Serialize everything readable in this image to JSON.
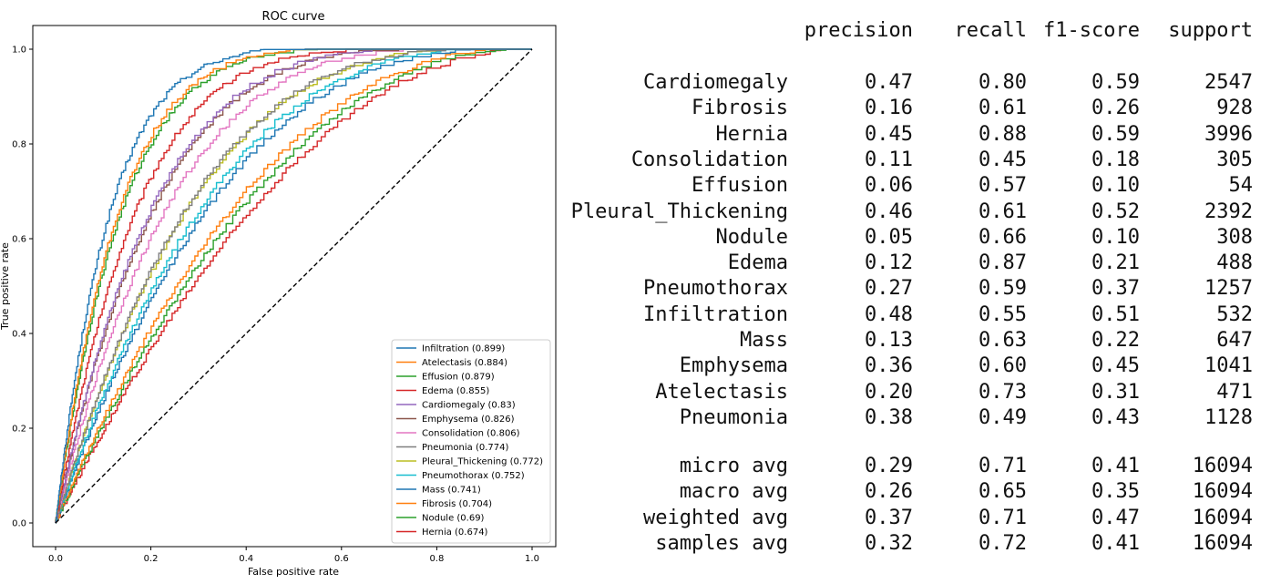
{
  "chart_data": [
    {
      "type": "line",
      "title": "ROC curve",
      "xlabel": "False positive rate",
      "ylabel": "True positive rate",
      "xlim": [
        -0.05,
        1.05
      ],
      "ylim": [
        -0.05,
        1.05
      ],
      "xticks": [
        "0.0",
        "0.2",
        "0.4",
        "0.6",
        "0.8",
        "1.0"
      ],
      "yticks": [
        "0.0",
        "0.2",
        "0.4",
        "0.6",
        "0.8",
        "1.0"
      ],
      "grid": false,
      "legend_position": "lower-right",
      "diagonal": {
        "style": "dashed",
        "color": "#000000"
      },
      "series": [
        {
          "name": "Infiltration (0.899)",
          "auc": 0.899,
          "color": "#1f77b4"
        },
        {
          "name": "Atelectasis (0.884)",
          "auc": 0.884,
          "color": "#ff7f0e"
        },
        {
          "name": "Effusion (0.879)",
          "auc": 0.879,
          "color": "#2ca02c"
        },
        {
          "name": "Edema (0.855)",
          "auc": 0.855,
          "color": "#d62728"
        },
        {
          "name": "Cardiomegaly (0.83)",
          "auc": 0.83,
          "color": "#9467bd"
        },
        {
          "name": "Emphysema (0.826)",
          "auc": 0.826,
          "color": "#8c564b"
        },
        {
          "name": "Consolidation (0.806)",
          "auc": 0.806,
          "color": "#e377c2"
        },
        {
          "name": "Pneumonia (0.774)",
          "auc": 0.774,
          "color": "#7f7f7f"
        },
        {
          "name": "Pleural_Thickening (0.772)",
          "auc": 0.772,
          "color": "#bcbd22"
        },
        {
          "name": "Pneumothorax (0.752)",
          "auc": 0.752,
          "color": "#17becf"
        },
        {
          "name": "Mass (0.741)",
          "auc": 0.741,
          "color": "#1f77b4"
        },
        {
          "name": "Fibrosis (0.704)",
          "auc": 0.704,
          "color": "#ff7f0e"
        },
        {
          "name": "Nodule (0.69)",
          "auc": 0.69,
          "color": "#2ca02c"
        },
        {
          "name": "Hernia (0.674)",
          "auc": 0.674,
          "color": "#d62728"
        }
      ]
    },
    {
      "type": "table",
      "columns": [
        "precision",
        "recall",
        "f1-score",
        "support"
      ],
      "rows": [
        {
          "label": "Cardiomegaly",
          "values": [
            "0.47",
            "0.80",
            "0.59",
            "2547"
          ]
        },
        {
          "label": "Fibrosis",
          "values": [
            "0.16",
            "0.61",
            "0.26",
            "928"
          ]
        },
        {
          "label": "Hernia",
          "values": [
            "0.45",
            "0.88",
            "0.59",
            "3996"
          ]
        },
        {
          "label": "Consolidation",
          "values": [
            "0.11",
            "0.45",
            "0.18",
            "305"
          ]
        },
        {
          "label": "Effusion",
          "values": [
            "0.06",
            "0.57",
            "0.10",
            "54"
          ]
        },
        {
          "label": "Pleural_Thickening",
          "values": [
            "0.46",
            "0.61",
            "0.52",
            "2392"
          ]
        },
        {
          "label": "Nodule",
          "values": [
            "0.05",
            "0.66",
            "0.10",
            "308"
          ]
        },
        {
          "label": "Edema",
          "values": [
            "0.12",
            "0.87",
            "0.21",
            "488"
          ]
        },
        {
          "label": "Pneumothorax",
          "values": [
            "0.27",
            "0.59",
            "0.37",
            "1257"
          ]
        },
        {
          "label": "Infiltration",
          "values": [
            "0.48",
            "0.55",
            "0.51",
            "532"
          ]
        },
        {
          "label": "Mass",
          "values": [
            "0.13",
            "0.63",
            "0.22",
            "647"
          ]
        },
        {
          "label": "Emphysema",
          "values": [
            "0.36",
            "0.60",
            "0.45",
            "1041"
          ]
        },
        {
          "label": "Atelectasis",
          "values": [
            "0.20",
            "0.73",
            "0.31",
            "471"
          ]
        },
        {
          "label": "Pneumonia",
          "values": [
            "0.38",
            "0.49",
            "0.43",
            "1128"
          ]
        }
      ],
      "avg_rows": [
        {
          "label": "micro avg",
          "values": [
            "0.29",
            "0.71",
            "0.41",
            "16094"
          ]
        },
        {
          "label": "macro avg",
          "values": [
            "0.26",
            "0.65",
            "0.35",
            "16094"
          ]
        },
        {
          "label": "weighted avg",
          "values": [
            "0.37",
            "0.71",
            "0.47",
            "16094"
          ]
        },
        {
          "label": "samples avg",
          "values": [
            "0.32",
            "0.72",
            "0.41",
            "16094"
          ]
        }
      ]
    }
  ]
}
